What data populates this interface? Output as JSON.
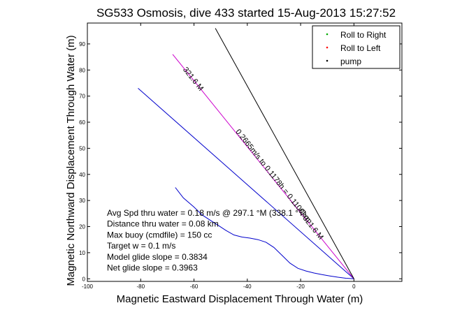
{
  "chart_data": {
    "type": "line",
    "title": "SG533 Osmosis, dive 433 started 15-Aug-2013 15:27:52",
    "xlabel": "Magnetic Eastward Displacement Through Water (m)",
    "ylabel": "Magnetic Northward Displacement Through Water (m)",
    "xlim": [
      -100,
      18
    ],
    "ylim": [
      -1,
      98
    ],
    "x_ticks": [
      -100,
      -80,
      -60,
      -40,
      -20,
      0
    ],
    "y_ticks": [
      0,
      10,
      20,
      30,
      40,
      50,
      60,
      70,
      80,
      90
    ],
    "grid": false,
    "legend_position": "top-right",
    "legend": [
      {
        "label": "Roll to Right",
        "color": "#00aa00"
      },
      {
        "label": "Roll to Left",
        "color": "#ff0000"
      },
      {
        "label": "pump",
        "color": "#000000"
      }
    ],
    "series": [
      {
        "kind": "track",
        "color": "#0000cc",
        "x": [
          -67,
          -64,
          -60,
          -57,
          -54,
          -51,
          -48,
          -45,
          -42,
          -39,
          -36,
          -33,
          -30,
          -27,
          -24,
          -21,
          -18,
          -15,
          -12,
          -9,
          -6,
          -3,
          0
        ],
        "y": [
          35,
          31,
          27.5,
          24.5,
          22.5,
          20.5,
          18.5,
          16.8,
          16,
          15.6,
          15,
          14,
          12,
          9,
          6,
          4,
          3,
          2.2,
          1.6,
          1.1,
          0.6,
          0.2,
          0
        ]
      },
      {
        "kind": "line",
        "color": "#0000cc",
        "x": [
          -81,
          0
        ],
        "y": [
          73,
          0
        ]
      },
      {
        "kind": "line",
        "color": "#cc00cc",
        "x": [
          -68,
          0
        ],
        "y": [
          86,
          0
        ]
      },
      {
        "kind": "line",
        "color": "#000000",
        "x": [
          -52,
          0
        ],
        "y": [
          96,
          0
        ]
      }
    ],
    "line_labels": [
      {
        "text": "321.6 M",
        "x": -61,
        "y": 76,
        "angle": 51.6
      },
      {
        "text": "0.2665m/s to 0.1178h = 0.1100km",
        "x": -31,
        "y": 39,
        "angle": 51.6
      },
      {
        "text": "321.6 M",
        "x": -16,
        "y": 19,
        "angle": 51.6
      }
    ],
    "annotations": [
      "Avg Spd thru water = 0.18 m/s @ 297.1 °M (338.1 °T)",
      "Distance thru water = 0.08 km",
      "Max buoy (cmdfile) = 150 cc",
      "Target w = 0.1 m/s",
      "Model glide slope = 0.3834",
      "Net glide slope = 0.3963"
    ]
  }
}
